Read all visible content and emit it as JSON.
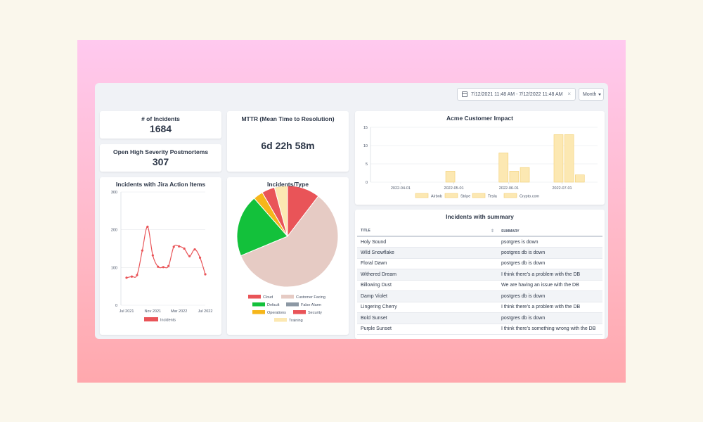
{
  "date_range": "7/12/2021 11:48 AM - 7/12/2022 11:48 AM",
  "date_clear": "×",
  "period": "Month",
  "kpis": {
    "incidents": {
      "label": "# of Incidents",
      "value": "1684"
    },
    "postmortems": {
      "label": "Open High Severity Postmortems",
      "value": "307"
    },
    "mttr": {
      "label": "MTTR (Mean Time to Resolution)",
      "value": "6d 22h 58m"
    }
  },
  "icons": {
    "date": "calendar-icon",
    "clear": "close-icon",
    "period": "chevron-down-icon",
    "sort": "sort-icon"
  },
  "colors": {
    "accent_red": "#e95458",
    "pie_beige": "#e6cbc4",
    "green": "#13c13b",
    "amber": "#f6b61a",
    "pale_yellow": "#fce8b2"
  },
  "charts": [
    {
      "id": "jira",
      "type": "line",
      "title": "Incidents with Jira Action Items",
      "x_ticks": [
        "Jul 2021",
        "Nov 2021",
        "Mar 2022",
        "Jul 2022"
      ],
      "y_ticks": [
        0,
        100,
        200,
        300
      ],
      "ylim": [
        0,
        300
      ],
      "legend": [
        {
          "label": "Incidents",
          "color": "#e95458"
        }
      ],
      "series": [
        {
          "name": "Incidents",
          "color": "#e95458",
          "values": [
            73,
            76,
            80,
            145,
            208,
            132,
            102,
            101,
            104,
            155,
            156,
            150,
            130,
            148,
            126,
            82
          ]
        }
      ]
    },
    {
      "id": "types",
      "type": "pie",
      "title": "Incidents/Type",
      "slices": [
        {
          "label": "Cloud",
          "value": 10,
          "color": "#e95458"
        },
        {
          "label": "Customer Facing",
          "value": 56,
          "color": "#e6cbc4"
        },
        {
          "label": "Default",
          "value": 19,
          "color": "#13c13b"
        },
        {
          "label": "False Alarm",
          "value": 0,
          "color": "#8c98a4"
        },
        {
          "label": "Operations",
          "value": 3,
          "color": "#f6b61a"
        },
        {
          "label": "Security",
          "value": 4,
          "color": "#e95458"
        },
        {
          "label": "Training",
          "value": 4,
          "color": "#fce8b2"
        }
      ]
    },
    {
      "id": "acme",
      "type": "bar",
      "title": "Acme Customer Impact",
      "x_ticks": [
        "2022-04-01",
        "2022-05-01",
        "2022-06-01",
        "2022-07-01"
      ],
      "y_ticks": [
        0,
        5,
        10,
        15
      ],
      "ylim": [
        0,
        15
      ],
      "legend": [
        {
          "label": "Airbnb",
          "color": "#fce8b2"
        },
        {
          "label": "Stripe",
          "color": "#fce8b2"
        },
        {
          "label": "Tesla",
          "color": "#fce8b2"
        },
        {
          "label": "Crypto.com",
          "color": "#fce8b2"
        }
      ],
      "bars": [
        {
          "date": "2022-04-29",
          "value": 3
        },
        {
          "date": "2022-05-29",
          "value": 8
        },
        {
          "date": "2022-06-04",
          "value": 3
        },
        {
          "date": "2022-06-10",
          "value": 4
        },
        {
          "date": "2022-06-29",
          "value": 13
        },
        {
          "date": "2022-07-05",
          "value": 13
        },
        {
          "date": "2022-07-11",
          "value": 2
        }
      ]
    }
  ],
  "summary_table": {
    "title": "Incidents with summary",
    "columns": [
      "TITLE",
      "SUMMARY"
    ],
    "rows": [
      [
        "Holy Sound",
        "psotgres is down"
      ],
      [
        "Wild Snowflake",
        "postgres db is down"
      ],
      [
        "Floral Dawn",
        "postgres db is down"
      ],
      [
        "Withered Dream",
        "I think there's a problem with the DB"
      ],
      [
        "Billowing Dust",
        "We are having an issue with the DB"
      ],
      [
        "Damp Violet",
        "postgres db is down"
      ],
      [
        "Lingering Cherry",
        "I think there's a problem with the DB"
      ],
      [
        "Bold Sunset",
        "postgres db is down"
      ],
      [
        "Purple Sunset",
        "I think there's something wrong with the DB"
      ]
    ]
  }
}
